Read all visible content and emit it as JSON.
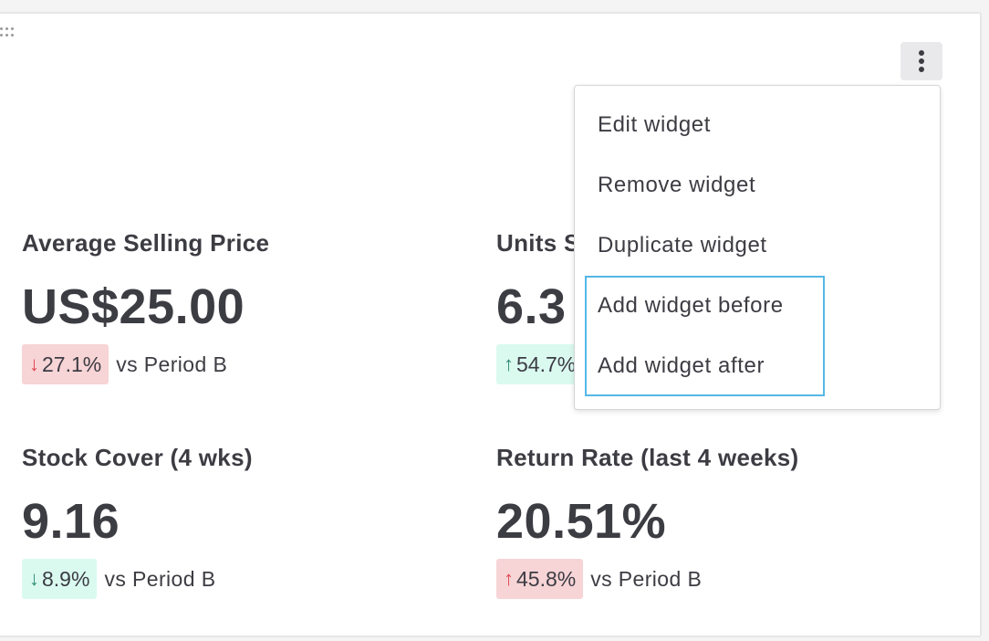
{
  "metrics": [
    {
      "title": "Average Selling Price",
      "value": "US$25.00",
      "delta": "27.1%",
      "arrow": "↓",
      "comparison": "vs Period B"
    },
    {
      "title": "Units S",
      "value": "6.3",
      "delta": "54.7%",
      "arrow": "↑",
      "comparison": ""
    },
    {
      "title": "Stock Cover (4 wks)",
      "value": "9.16",
      "delta": "8.9%",
      "arrow": "↓",
      "comparison": "vs Period B"
    },
    {
      "title": "Return Rate (last 4 weeks)",
      "value": "20.51%",
      "delta": "45.8%",
      "arrow": "↑",
      "comparison": "vs Period B"
    }
  ],
  "menu": {
    "items": [
      "Edit widget",
      "Remove widget",
      "Duplicate widget",
      "Add widget before",
      "Add widget after"
    ]
  },
  "icons": {
    "drag": "drag-handle-icon",
    "more": "more-vertical-icon",
    "down": "arrow-down-icon",
    "up": "arrow-up-icon"
  },
  "colors": {
    "negative_bg": "#f7d4d6",
    "positive_bg": "#dafaf0",
    "highlight": "#55b7e6"
  }
}
